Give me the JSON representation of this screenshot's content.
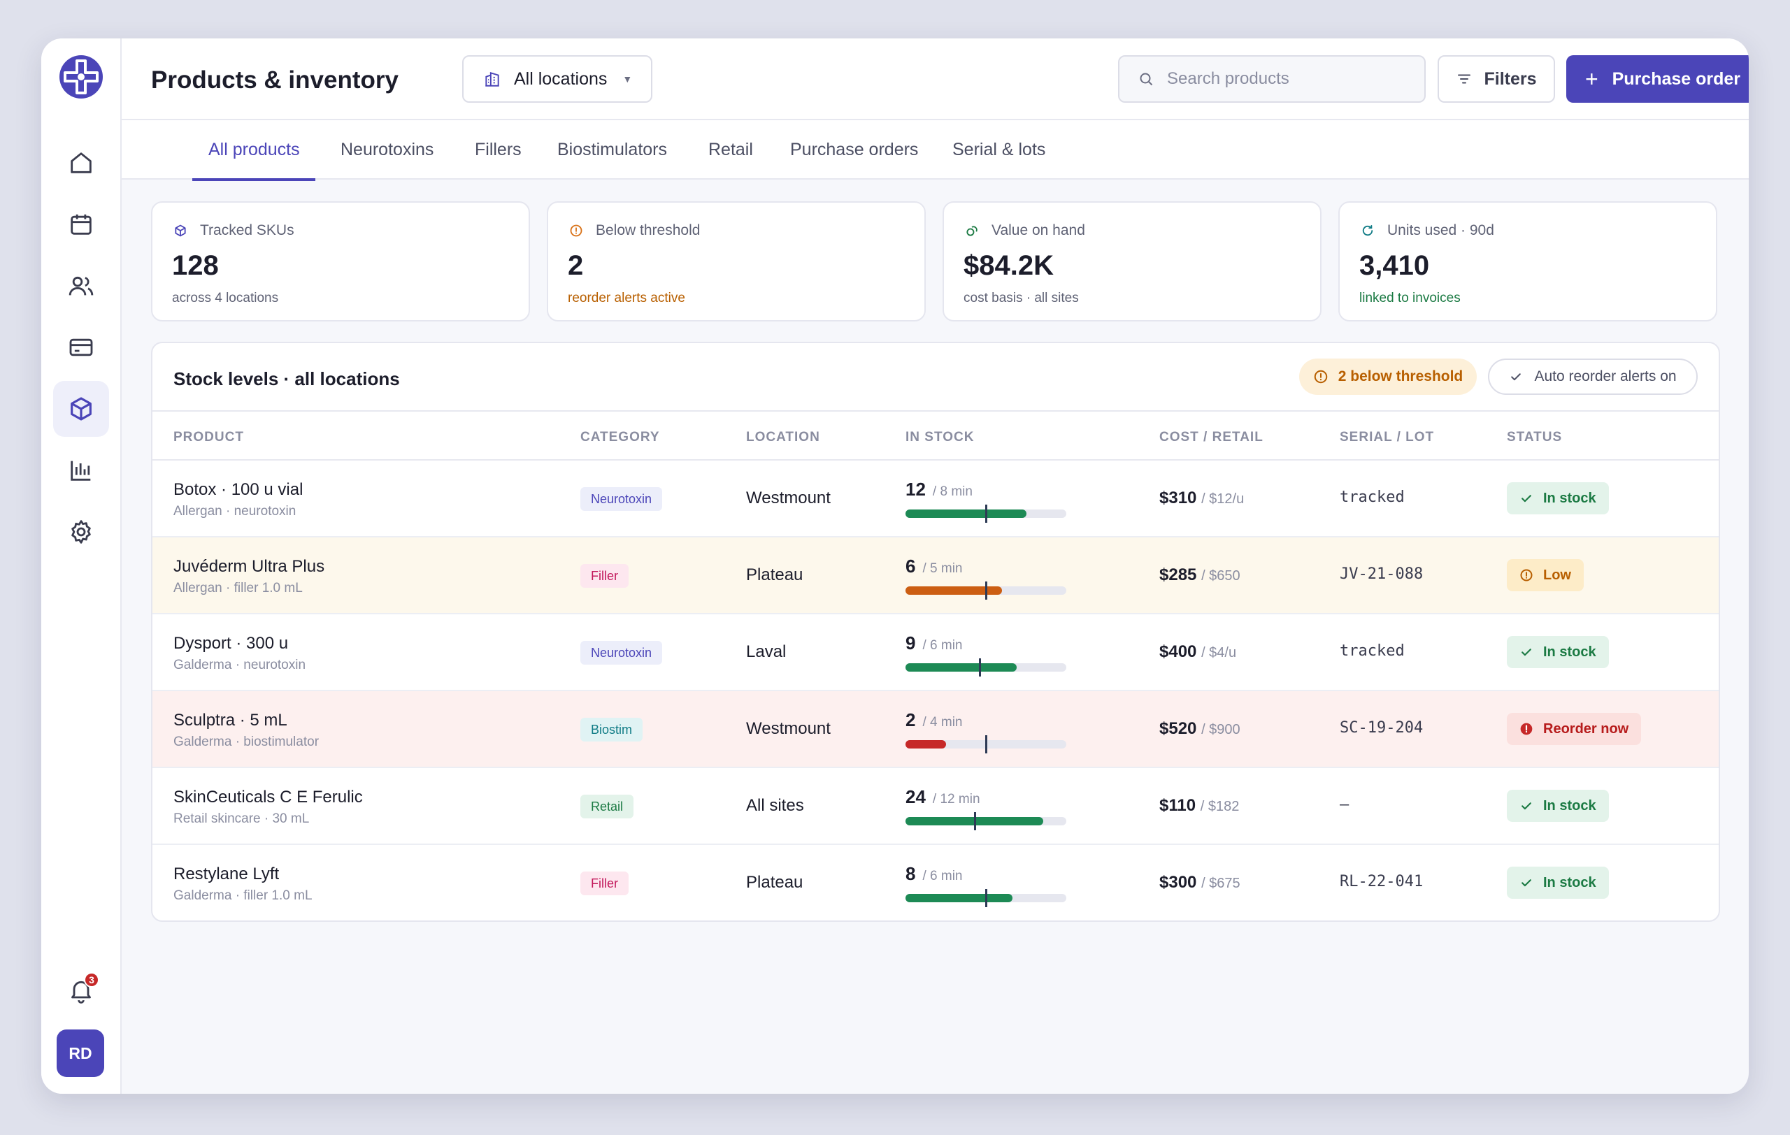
{
  "header": {
    "title": "Products & inventory",
    "location_select": "All locations",
    "search_placeholder": "Search products",
    "filters_label": "Filters",
    "purchase_order_label": "Purchase order"
  },
  "tabs": [
    "All products",
    "Neurotoxins",
    "Fillers",
    "Biostimulators",
    "Retail",
    "Purchase orders",
    "Serial & lots"
  ],
  "kpis": [
    {
      "label": "Tracked SKUs",
      "value": "128",
      "sub": "across 4 locations",
      "icon": "box-icon",
      "sub_color": "#5f6275",
      "icon_color": "#4b45b8"
    },
    {
      "label": "Below threshold",
      "value": "2",
      "sub": "reorder alerts active",
      "icon": "alert-icon",
      "sub_color": "#b85f00",
      "icon_color": "#d9731a"
    },
    {
      "label": "Value on hand",
      "value": "$84.2K",
      "sub": "cost basis · all sites",
      "icon": "coins-icon",
      "sub_color": "#5f6275",
      "icon_color": "#1b7a43"
    },
    {
      "label": "Units used · 90d",
      "value": "3,410",
      "sub": "linked to invoices",
      "icon": "refresh-icon",
      "sub_color": "#1b7a43",
      "icon_color": "#117c86"
    }
  ],
  "stock": {
    "title": "Stock levels · all locations",
    "warn_pill": "2 below threshold",
    "auto_pill": "Auto reorder alerts on",
    "columns": [
      "PRODUCT",
      "CATEGORY",
      "LOCATION",
      "IN STOCK",
      "COST / RETAIL",
      "SERIAL / LOT",
      "STATUS"
    ],
    "rows": [
      {
        "name": "Botox · 100 u vial",
        "sub": "Allergan · neurotoxin",
        "category": "Neurotoxin",
        "cat_type": "neuro",
        "location": "Westmount",
        "qty": "12",
        "min_label": "/ 8 min",
        "qty_num": 12,
        "min_num": 8,
        "scale": 16,
        "cost": "$310",
        "retail": "/ $12/u",
        "serial": "tracked",
        "status": "In stock",
        "status_type": "in"
      },
      {
        "name": "Juvéderm Ultra Plus",
        "sub": "Allergan · filler 1.0 mL",
        "category": "Filler",
        "cat_type": "filler",
        "location": "Plateau",
        "qty": "6",
        "min_label": "/ 5 min",
        "qty_num": 6,
        "min_num": 5,
        "scale": 10,
        "cost": "$285",
        "retail": "/ $650",
        "serial": "JV-21-088",
        "status": "Low",
        "status_type": "low"
      },
      {
        "name": "Dysport · 300 u",
        "sub": "Galderma · neurotoxin",
        "category": "Neurotoxin",
        "cat_type": "neuro",
        "location": "Laval",
        "qty": "9",
        "min_label": "/ 6 min",
        "qty_num": 9,
        "min_num": 6,
        "scale": 13,
        "cost": "$400",
        "retail": "/ $4/u",
        "serial": "tracked",
        "status": "In stock",
        "status_type": "in"
      },
      {
        "name": "Sculptra · 5 mL",
        "sub": "Galderma · biostimulator",
        "category": "Biostim",
        "cat_type": "biostim",
        "location": "Westmount",
        "qty": "2",
        "min_label": "/ 4 min",
        "qty_num": 2,
        "min_num": 4,
        "scale": 8,
        "cost": "$520",
        "retail": "/ $900",
        "serial": "SC-19-204",
        "status": "Reorder now",
        "status_type": "crit"
      },
      {
        "name": "SkinCeuticals C E Ferulic",
        "sub": "Retail skincare · 30 mL",
        "category": "Retail",
        "cat_type": "retail",
        "location": "All sites",
        "qty": "24",
        "min_label": "/ 12 min",
        "qty_num": 24,
        "min_num": 12,
        "scale": 28,
        "cost": "$110",
        "retail": "/ $182",
        "serial": "–",
        "status": "In stock",
        "status_type": "in"
      },
      {
        "name": "Restylane Lyft",
        "sub": "Galderma · filler 1.0 mL",
        "category": "Filler",
        "cat_type": "filler",
        "location": "Plateau",
        "qty": "8",
        "min_label": "/ 6 min",
        "qty_num": 8,
        "min_num": 6,
        "scale": 12,
        "cost": "$300",
        "retail": "/ $675",
        "serial": "RL-22-041",
        "status": "In stock",
        "status_type": "in"
      }
    ]
  },
  "user": {
    "initials": "RD",
    "notifications": "3"
  },
  "colors": {
    "accent": "#4b45b8",
    "ok": "#1d8a55",
    "warn": "#cc5e12",
    "crit": "#c62828"
  }
}
